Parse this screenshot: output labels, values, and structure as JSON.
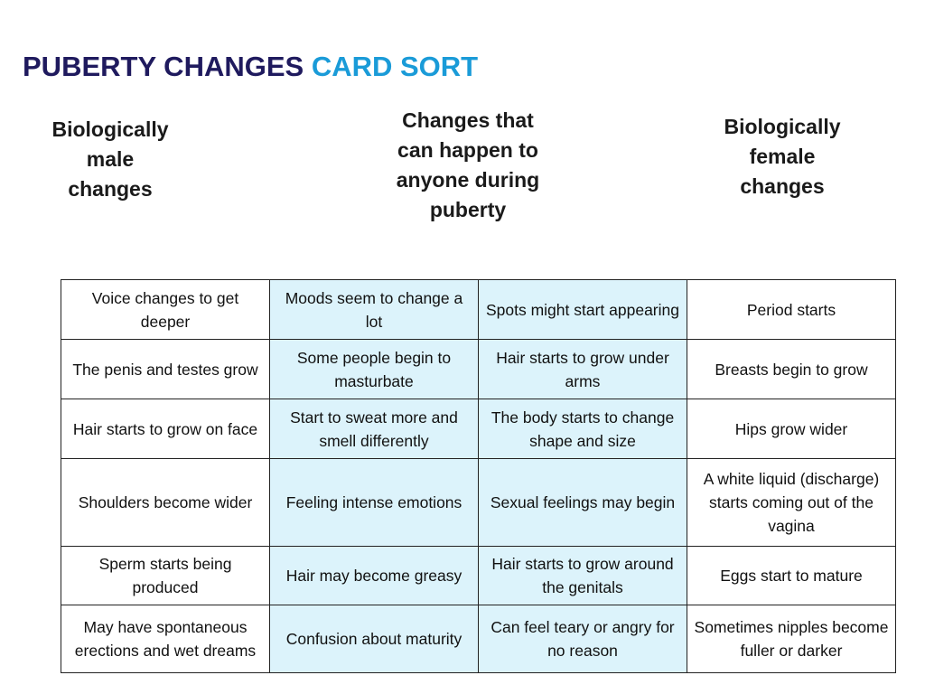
{
  "title": {
    "part1": "PUBERTY CHANGES ",
    "part2": "CARD SORT",
    "color1": "#1f1a5e",
    "color2": "#1a9bd8"
  },
  "columns": {
    "male": "Biologically\nmale\nchanges",
    "anyone": "Changes that\ncan happen to\nanyone during\npuberty",
    "female": "Biologically\nfemale\nchanges"
  },
  "table": {
    "shade_color": "#dcf3fb",
    "rows": [
      [
        "Voice changes to get deeper",
        "Moods seem to change a lot",
        "Spots might start appearing",
        "Period starts"
      ],
      [
        "The penis and testes grow",
        "Some people begin to masturbate",
        "Hair starts to grow under arms",
        "Breasts begin to grow"
      ],
      [
        "Hair starts to grow on face",
        "Start to sweat more and smell differently",
        "The body starts to change shape and size",
        "Hips grow wider"
      ],
      [
        "Shoulders become wider",
        "Feeling intense emotions",
        "Sexual feelings may begin",
        "A white liquid (discharge) starts coming out of the vagina"
      ],
      [
        "Sperm starts being produced",
        "Hair may become greasy",
        "Hair starts to grow around the genitals",
        "Eggs start to mature"
      ],
      [
        "May have spontaneous erections and wet dreams",
        "Confusion about maturity",
        "Can feel teary or angry for no reason",
        "Sometimes nipples become fuller or darker"
      ]
    ]
  }
}
